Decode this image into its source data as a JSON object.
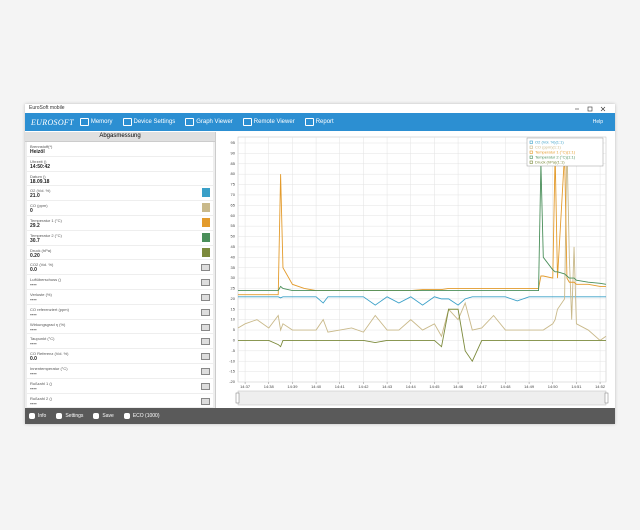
{
  "window": {
    "title": "EuroSoft mobile"
  },
  "toolbar": {
    "logo": "EUROSOFT",
    "items": [
      "Memory",
      "Device Settings",
      "Graph Viewer",
      "Remote Viewer",
      "Report"
    ],
    "help": "Help"
  },
  "panel": {
    "title": "Abgasmessung",
    "rows": [
      {
        "label": "Brennstoff(*)",
        "value": "Heizöl"
      },
      {
        "label": "Uhrzeit ()",
        "value": "14:50:42"
      },
      {
        "label": "Datum ()",
        "value": "18.09.18"
      },
      {
        "label": "O2 (Vol. %)",
        "value": "21.0"
      },
      {
        "label": "CO (ppm)",
        "value": "0"
      },
      {
        "label": "Temperatur 1 (°C)",
        "value": "29.2"
      },
      {
        "label": "Temperatur 2 (°C)",
        "value": "30.7"
      },
      {
        "label": "Druck (hPa)",
        "value": "0.20"
      },
      {
        "label": "CO2 (Vol. %)",
        "value": "0.0"
      },
      {
        "label": "Luftüberschuss ()",
        "value": "----"
      },
      {
        "label": "Verluste (%)",
        "value": "----"
      },
      {
        "label": "CO referenziert (ppm)",
        "value": "----"
      },
      {
        "label": "Wirkungsgrad η (%)",
        "value": "----"
      },
      {
        "label": "Taupunkt (°C)",
        "value": "----"
      },
      {
        "label": "CO Referenz (Vol. %)",
        "value": "0.0"
      },
      {
        "label": "Innentemperatur (°C)",
        "value": "----"
      },
      {
        "label": "Rußzahl 1 ()",
        "value": "----"
      },
      {
        "label": "Rußzahl 2 ()",
        "value": "----"
      }
    ]
  },
  "chart_data": {
    "type": "line",
    "x": [
      36.7,
      37.0,
      37.5,
      38.0,
      38.4,
      38.5,
      38.6,
      39.0,
      39.5,
      40.0,
      40.3,
      40.5,
      41.0,
      41.5,
      42.0,
      42.5,
      43.0,
      43.5,
      44.0,
      44.5,
      45.0,
      45.3,
      45.6,
      46.0,
      46.3,
      46.6,
      47.0,
      47.5,
      48.0,
      48.5,
      49.0,
      49.4,
      49.5,
      49.6,
      50.0,
      50.1,
      50.2,
      50.5,
      50.6,
      50.7,
      50.8,
      50.9,
      51.0,
      51.5,
      52.0,
      52.25
    ],
    "series": [
      {
        "name": "O2 (Vol. %)(1:1)",
        "color": "#3aa0c8",
        "values": [
          21,
          21,
          21,
          21,
          21,
          20.5,
          21,
          21,
          21,
          21,
          18,
          21,
          21,
          21,
          21,
          17,
          21,
          18,
          21,
          17,
          21,
          20,
          20,
          17,
          20,
          21,
          21,
          21,
          21,
          19,
          21,
          21,
          21,
          21,
          21,
          21,
          21,
          21,
          21,
          21,
          21,
          21,
          21,
          21,
          21,
          21
        ]
      },
      {
        "name": "CO (ppm)(1:1)",
        "color": "#c9b98a",
        "values": [
          6,
          8,
          10,
          6,
          12,
          5,
          8,
          5,
          5,
          5,
          10,
          4,
          5,
          6,
          4,
          12,
          5,
          5,
          10,
          5,
          8,
          2,
          15,
          10,
          18,
          5,
          6,
          12,
          5,
          5,
          5,
          5,
          5,
          5,
          8,
          10,
          15,
          20,
          95,
          40,
          10,
          45,
          8,
          5,
          0,
          2
        ]
      },
      {
        "name": "Temperatur 1 (°C)(1:1)",
        "color": "#e39b2c",
        "values": [
          22,
          22,
          22,
          22,
          22,
          80,
          35,
          27,
          25,
          24,
          24,
          24,
          24,
          24,
          24,
          24,
          24,
          24,
          24,
          24.5,
          24.5,
          24.5,
          25,
          25,
          25,
          25,
          25,
          25,
          25,
          25,
          25,
          25,
          31,
          31,
          30,
          90,
          30,
          90,
          30,
          28,
          28,
          28,
          27,
          27,
          26,
          26
        ]
      },
      {
        "name": "Temperatur 2 (°C)(1:1)",
        "color": "#4a8f5a",
        "values": [
          24,
          24,
          24,
          24,
          24,
          26,
          25,
          24,
          24,
          24,
          24,
          24,
          24,
          24,
          24,
          24,
          24,
          24,
          24,
          24,
          24,
          24,
          24,
          24,
          24,
          24,
          24,
          24,
          24,
          24,
          24,
          24,
          85,
          40,
          34,
          33,
          33,
          32,
          31,
          30,
          30,
          30,
          29,
          28,
          27.5,
          27
        ]
      },
      {
        "name": "Druck (hPa)(1:1)",
        "color": "#7c8a3c",
        "values": [
          0,
          0,
          0,
          0,
          -2,
          -3,
          0,
          0,
          0,
          0,
          0,
          0,
          0,
          0,
          0,
          -1,
          0,
          0,
          0,
          0,
          0,
          -3,
          15,
          15,
          -5,
          -10,
          0,
          0,
          0,
          0,
          0,
          0,
          0,
          0,
          0,
          0,
          0,
          0,
          0,
          0,
          0,
          0,
          0,
          0,
          0,
          0
        ]
      }
    ],
    "xlim": [
      36.7,
      52.25
    ],
    "xticks": [
      {
        "value": 37,
        "label": "14:37"
      },
      {
        "value": 38,
        "label": "14:38"
      },
      {
        "value": 39,
        "label": "14:39"
      },
      {
        "value": 40,
        "label": "14:40"
      },
      {
        "value": 41,
        "label": "14:41"
      },
      {
        "value": 42,
        "label": "14:42"
      },
      {
        "value": 43,
        "label": "14:43"
      },
      {
        "value": 44,
        "label": "14:44"
      },
      {
        "value": 45,
        "label": "14:45"
      },
      {
        "value": 46,
        "label": "14:46"
      },
      {
        "value": 47,
        "label": "14:47"
      },
      {
        "value": 48,
        "label": "14:48"
      },
      {
        "value": 49,
        "label": "14:49"
      },
      {
        "value": 50,
        "label": "14:50"
      },
      {
        "value": 51,
        "label": "14:51"
      },
      {
        "value": 52,
        "label": "14:52"
      }
    ],
    "ylim": [
      -20,
      95
    ],
    "yticks": [
      -20,
      -15,
      -10,
      -5,
      0,
      5,
      10,
      15,
      20,
      25,
      30,
      35,
      40,
      45,
      50,
      55,
      60,
      65,
      70,
      75,
      80,
      85,
      90,
      95
    ],
    "grid": true,
    "legend": "top-right"
  },
  "footer": {
    "items": [
      "Info",
      "Settings",
      "Save",
      "ECO (1000)"
    ]
  }
}
